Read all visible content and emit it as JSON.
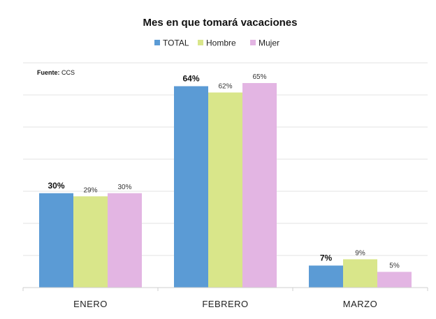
{
  "chart_data": {
    "type": "bar",
    "title": "Mes en que tomará vacaciones",
    "source_label": "Fuente:",
    "source_value": " CCS",
    "categories": [
      "ENERO",
      "FEBRERO",
      "MARZO"
    ],
    "series": [
      {
        "name": "TOTAL",
        "color": "#5b9bd5",
        "values": [
          30,
          64,
          7
        ],
        "labels": [
          "30%",
          "64%",
          "7%"
        ]
      },
      {
        "name": "Hombre",
        "color": "#d9e68a",
        "values": [
          29,
          62,
          9
        ],
        "labels": [
          "29%",
          "62%",
          "9%"
        ]
      },
      {
        "name": "Mujer",
        "color": "#e3b5e3",
        "values": [
          30,
          65,
          5
        ],
        "labels": [
          "30%",
          "65%",
          "5%"
        ]
      }
    ],
    "ylim": [
      0,
      70
    ],
    "grid": true,
    "legend_position": "top-center",
    "xlabel": "",
    "ylabel": ""
  }
}
